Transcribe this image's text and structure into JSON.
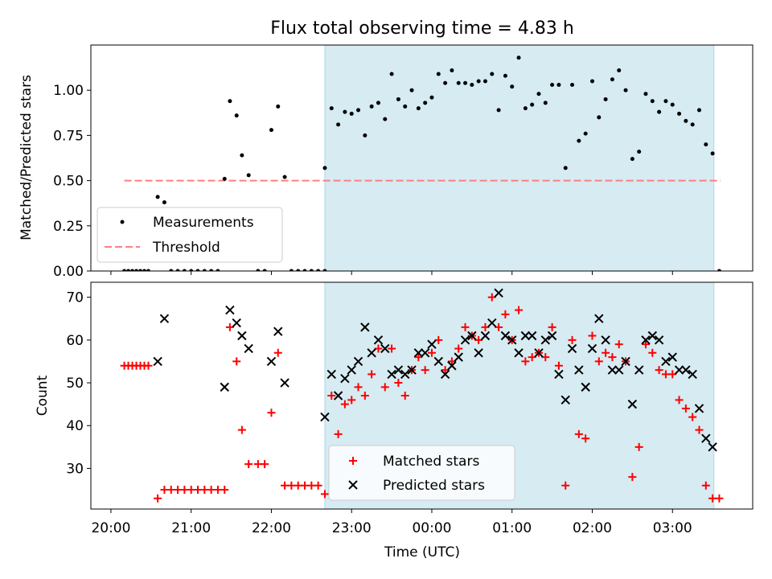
{
  "title": "Flux total observing time = 4.83 h",
  "xlabel": "Time (UTC)",
  "chart_data": [
    {
      "type": "scatter",
      "panel": "top",
      "ylabel": "Matched/Predicted stars",
      "ylim": [
        0,
        1.25
      ],
      "yticks": [
        "0.00",
        "0.25",
        "0.50",
        "0.75",
        "1.00"
      ],
      "x_unit": "minutes after 20:00 UTC",
      "xlim": [
        -15,
        480
      ],
      "xticks": [
        "20:00",
        "21:00",
        "22:00",
        "23:00",
        "00:00",
        "01:00",
        "02:00",
        "03:00"
      ],
      "shaded_interval": [
        "22:40",
        "03:31"
      ],
      "legend": [
        "Measurements",
        "Threshold"
      ],
      "legend_position": "lower left",
      "threshold": {
        "name": "Threshold",
        "value": 0.5,
        "x_range": [
          "20:10",
          "03:36"
        ],
        "color": "#ff7f7f"
      },
      "series": [
        {
          "name": "Measurements",
          "color": "#000000",
          "points": [
            [
              10,
              0
            ],
            [
              13,
              0
            ],
            [
              16,
              0
            ],
            [
              19,
              0
            ],
            [
              22,
              0
            ],
            [
              25,
              0
            ],
            [
              28,
              0
            ],
            [
              35,
              0.41
            ],
            [
              40,
              0.38
            ],
            [
              45,
              0
            ],
            [
              50,
              0
            ],
            [
              55,
              0
            ],
            [
              60,
              0
            ],
            [
              65,
              0
            ],
            [
              70,
              0
            ],
            [
              75,
              0
            ],
            [
              80,
              0
            ],
            [
              85,
              0.51
            ],
            [
              89,
              0.94
            ],
            [
              94,
              0.86
            ],
            [
              98,
              0.64
            ],
            [
              103,
              0.53
            ],
            [
              110,
              0
            ],
            [
              115,
              0
            ],
            [
              120,
              0.78
            ],
            [
              125,
              0.91
            ],
            [
              130,
              0.52
            ],
            [
              135,
              0
            ],
            [
              140,
              0
            ],
            [
              145,
              0
            ],
            [
              150,
              0
            ],
            [
              155,
              0
            ],
            [
              160,
              0
            ],
            [
              160,
              0.57
            ],
            [
              165,
              0.9
            ],
            [
              170,
              0.81
            ],
            [
              175,
              0.88
            ],
            [
              180,
              0.87
            ],
            [
              185,
              0.89
            ],
            [
              190,
              0.75
            ],
            [
              195,
              0.91
            ],
            [
              200,
              0.93
            ],
            [
              205,
              0.84
            ],
            [
              210,
              1.09
            ],
            [
              215,
              0.95
            ],
            [
              220,
              0.91
            ],
            [
              225,
              1.0
            ],
            [
              230,
              0.9
            ],
            [
              235,
              0.93
            ],
            [
              240,
              0.96
            ],
            [
              245,
              1.09
            ],
            [
              250,
              1.04
            ],
            [
              255,
              1.11
            ],
            [
              260,
              1.04
            ],
            [
              265,
              1.04
            ],
            [
              270,
              1.03
            ],
            [
              275,
              1.05
            ],
            [
              280,
              1.05
            ],
            [
              285,
              1.09
            ],
            [
              290,
              0.89
            ],
            [
              295,
              1.08
            ],
            [
              300,
              1.02
            ],
            [
              305,
              1.18
            ],
            [
              310,
              0.9
            ],
            [
              315,
              0.92
            ],
            [
              320,
              0.98
            ],
            [
              325,
              0.93
            ],
            [
              330,
              1.03
            ],
            [
              335,
              1.03
            ],
            [
              340,
              0.57
            ],
            [
              345,
              1.03
            ],
            [
              350,
              0.72
            ],
            [
              355,
              0.76
            ],
            [
              360,
              1.05
            ],
            [
              365,
              0.85
            ],
            [
              370,
              0.95
            ],
            [
              375,
              1.06
            ],
            [
              380,
              1.11
            ],
            [
              385,
              1.0
            ],
            [
              390,
              0.62
            ],
            [
              395,
              0.66
            ],
            [
              400,
              0.98
            ],
            [
              405,
              0.94
            ],
            [
              410,
              0.88
            ],
            [
              415,
              0.94
            ],
            [
              420,
              0.92
            ],
            [
              425,
              0.87
            ],
            [
              430,
              0.83
            ],
            [
              435,
              0.81
            ],
            [
              440,
              0.89
            ],
            [
              445,
              0.7
            ],
            [
              450,
              0.65
            ],
            [
              455,
              0
            ]
          ]
        }
      ]
    },
    {
      "type": "scatter",
      "panel": "bottom",
      "ylabel": "Count",
      "ylim": [
        20.5,
        73.5
      ],
      "yticks": [
        "30",
        "40",
        "50",
        "60",
        "70"
      ],
      "x_unit": "minutes after 20:00 UTC",
      "xlim": [
        -15,
        480
      ],
      "xticks": [
        "20:00",
        "21:00",
        "22:00",
        "23:00",
        "00:00",
        "01:00",
        "02:00",
        "03:00"
      ],
      "shaded_interval": [
        "22:40",
        "03:31"
      ],
      "legend": [
        "Matched stars",
        "Predicted stars"
      ],
      "legend_position": "lower center",
      "series": [
        {
          "name": "Matched stars",
          "color": "#ff0000",
          "marker": "+",
          "points": [
            [
              10,
              54
            ],
            [
              13,
              54
            ],
            [
              16,
              54
            ],
            [
              19,
              54
            ],
            [
              22,
              54
            ],
            [
              25,
              54
            ],
            [
              28,
              54
            ],
            [
              35,
              23
            ],
            [
              40,
              25
            ],
            [
              45,
              25
            ],
            [
              50,
              25
            ],
            [
              55,
              25
            ],
            [
              60,
              25
            ],
            [
              65,
              25
            ],
            [
              70,
              25
            ],
            [
              75,
              25
            ],
            [
              80,
              25
            ],
            [
              85,
              25
            ],
            [
              89,
              63
            ],
            [
              94,
              55
            ],
            [
              98,
              39
            ],
            [
              103,
              31
            ],
            [
              110,
              31
            ],
            [
              115,
              31
            ],
            [
              120,
              43
            ],
            [
              125,
              57
            ],
            [
              130,
              26
            ],
            [
              135,
              26
            ],
            [
              140,
              26
            ],
            [
              145,
              26
            ],
            [
              150,
              26
            ],
            [
              155,
              26
            ],
            [
              160,
              24
            ],
            [
              165,
              47
            ],
            [
              170,
              38
            ],
            [
              175,
              45
            ],
            [
              180,
              46
            ],
            [
              185,
              49
            ],
            [
              190,
              47
            ],
            [
              195,
              52
            ],
            [
              200,
              58
            ],
            [
              205,
              49
            ],
            [
              210,
              58
            ],
            [
              215,
              50
            ],
            [
              220,
              47
            ],
            [
              225,
              53
            ],
            [
              230,
              56
            ],
            [
              235,
              53
            ],
            [
              240,
              57
            ],
            [
              245,
              60
            ],
            [
              250,
              53
            ],
            [
              255,
              55
            ],
            [
              260,
              58
            ],
            [
              265,
              63
            ],
            [
              270,
              61
            ],
            [
              275,
              60
            ],
            [
              280,
              63
            ],
            [
              285,
              70
            ],
            [
              290,
              63
            ],
            [
              295,
              66
            ],
            [
              300,
              60
            ],
            [
              305,
              67
            ],
            [
              310,
              55
            ],
            [
              315,
              56
            ],
            [
              320,
              57
            ],
            [
              325,
              56
            ],
            [
              330,
              63
            ],
            [
              335,
              54
            ],
            [
              340,
              26
            ],
            [
              345,
              60
            ],
            [
              350,
              38
            ],
            [
              355,
              37
            ],
            [
              360,
              61
            ],
            [
              365,
              55
            ],
            [
              370,
              57
            ],
            [
              375,
              56
            ],
            [
              380,
              59
            ],
            [
              385,
              55
            ],
            [
              390,
              28
            ],
            [
              395,
              35
            ],
            [
              400,
              59
            ],
            [
              405,
              57
            ],
            [
              410,
              53
            ],
            [
              415,
              52
            ],
            [
              420,
              52
            ],
            [
              425,
              46
            ],
            [
              430,
              44
            ],
            [
              435,
              42
            ],
            [
              440,
              39
            ],
            [
              445,
              26
            ],
            [
              450,
              23
            ],
            [
              455,
              23
            ]
          ]
        },
        {
          "name": "Predicted stars",
          "color": "#000000",
          "marker": "x",
          "points": [
            [
              35,
              55
            ],
            [
              40,
              65
            ],
            [
              85,
              49
            ],
            [
              89,
              67
            ],
            [
              94,
              64
            ],
            [
              98,
              61
            ],
            [
              103,
              58
            ],
            [
              120,
              55
            ],
            [
              125,
              62
            ],
            [
              130,
              50
            ],
            [
              160,
              42
            ],
            [
              165,
              52
            ],
            [
              170,
              47
            ],
            [
              175,
              51
            ],
            [
              180,
              53
            ],
            [
              185,
              55
            ],
            [
              190,
              63
            ],
            [
              195,
              57
            ],
            [
              200,
              60
            ],
            [
              205,
              58
            ],
            [
              210,
              52
            ],
            [
              215,
              53
            ],
            [
              220,
              52
            ],
            [
              225,
              53
            ],
            [
              230,
              57
            ],
            [
              235,
              57
            ],
            [
              240,
              59
            ],
            [
              245,
              55
            ],
            [
              250,
              52
            ],
            [
              255,
              54
            ],
            [
              260,
              56
            ],
            [
              265,
              60
            ],
            [
              270,
              61
            ],
            [
              275,
              57
            ],
            [
              280,
              61
            ],
            [
              285,
              64
            ],
            [
              290,
              71
            ],
            [
              295,
              61
            ],
            [
              300,
              60
            ],
            [
              305,
              57
            ],
            [
              310,
              61
            ],
            [
              315,
              61
            ],
            [
              320,
              57
            ],
            [
              325,
              60
            ],
            [
              330,
              61
            ],
            [
              335,
              52
            ],
            [
              340,
              46
            ],
            [
              345,
              58
            ],
            [
              350,
              53
            ],
            [
              355,
              49
            ],
            [
              360,
              58
            ],
            [
              365,
              65
            ],
            [
              370,
              60
            ],
            [
              375,
              53
            ],
            [
              380,
              53
            ],
            [
              385,
              55
            ],
            [
              390,
              45
            ],
            [
              395,
              53
            ],
            [
              400,
              60
            ],
            [
              405,
              61
            ],
            [
              410,
              60
            ],
            [
              415,
              55
            ],
            [
              420,
              56
            ],
            [
              425,
              53
            ],
            [
              430,
              53
            ],
            [
              435,
              52
            ],
            [
              440,
              44
            ],
            [
              445,
              37
            ],
            [
              450,
              35
            ]
          ]
        }
      ]
    }
  ]
}
